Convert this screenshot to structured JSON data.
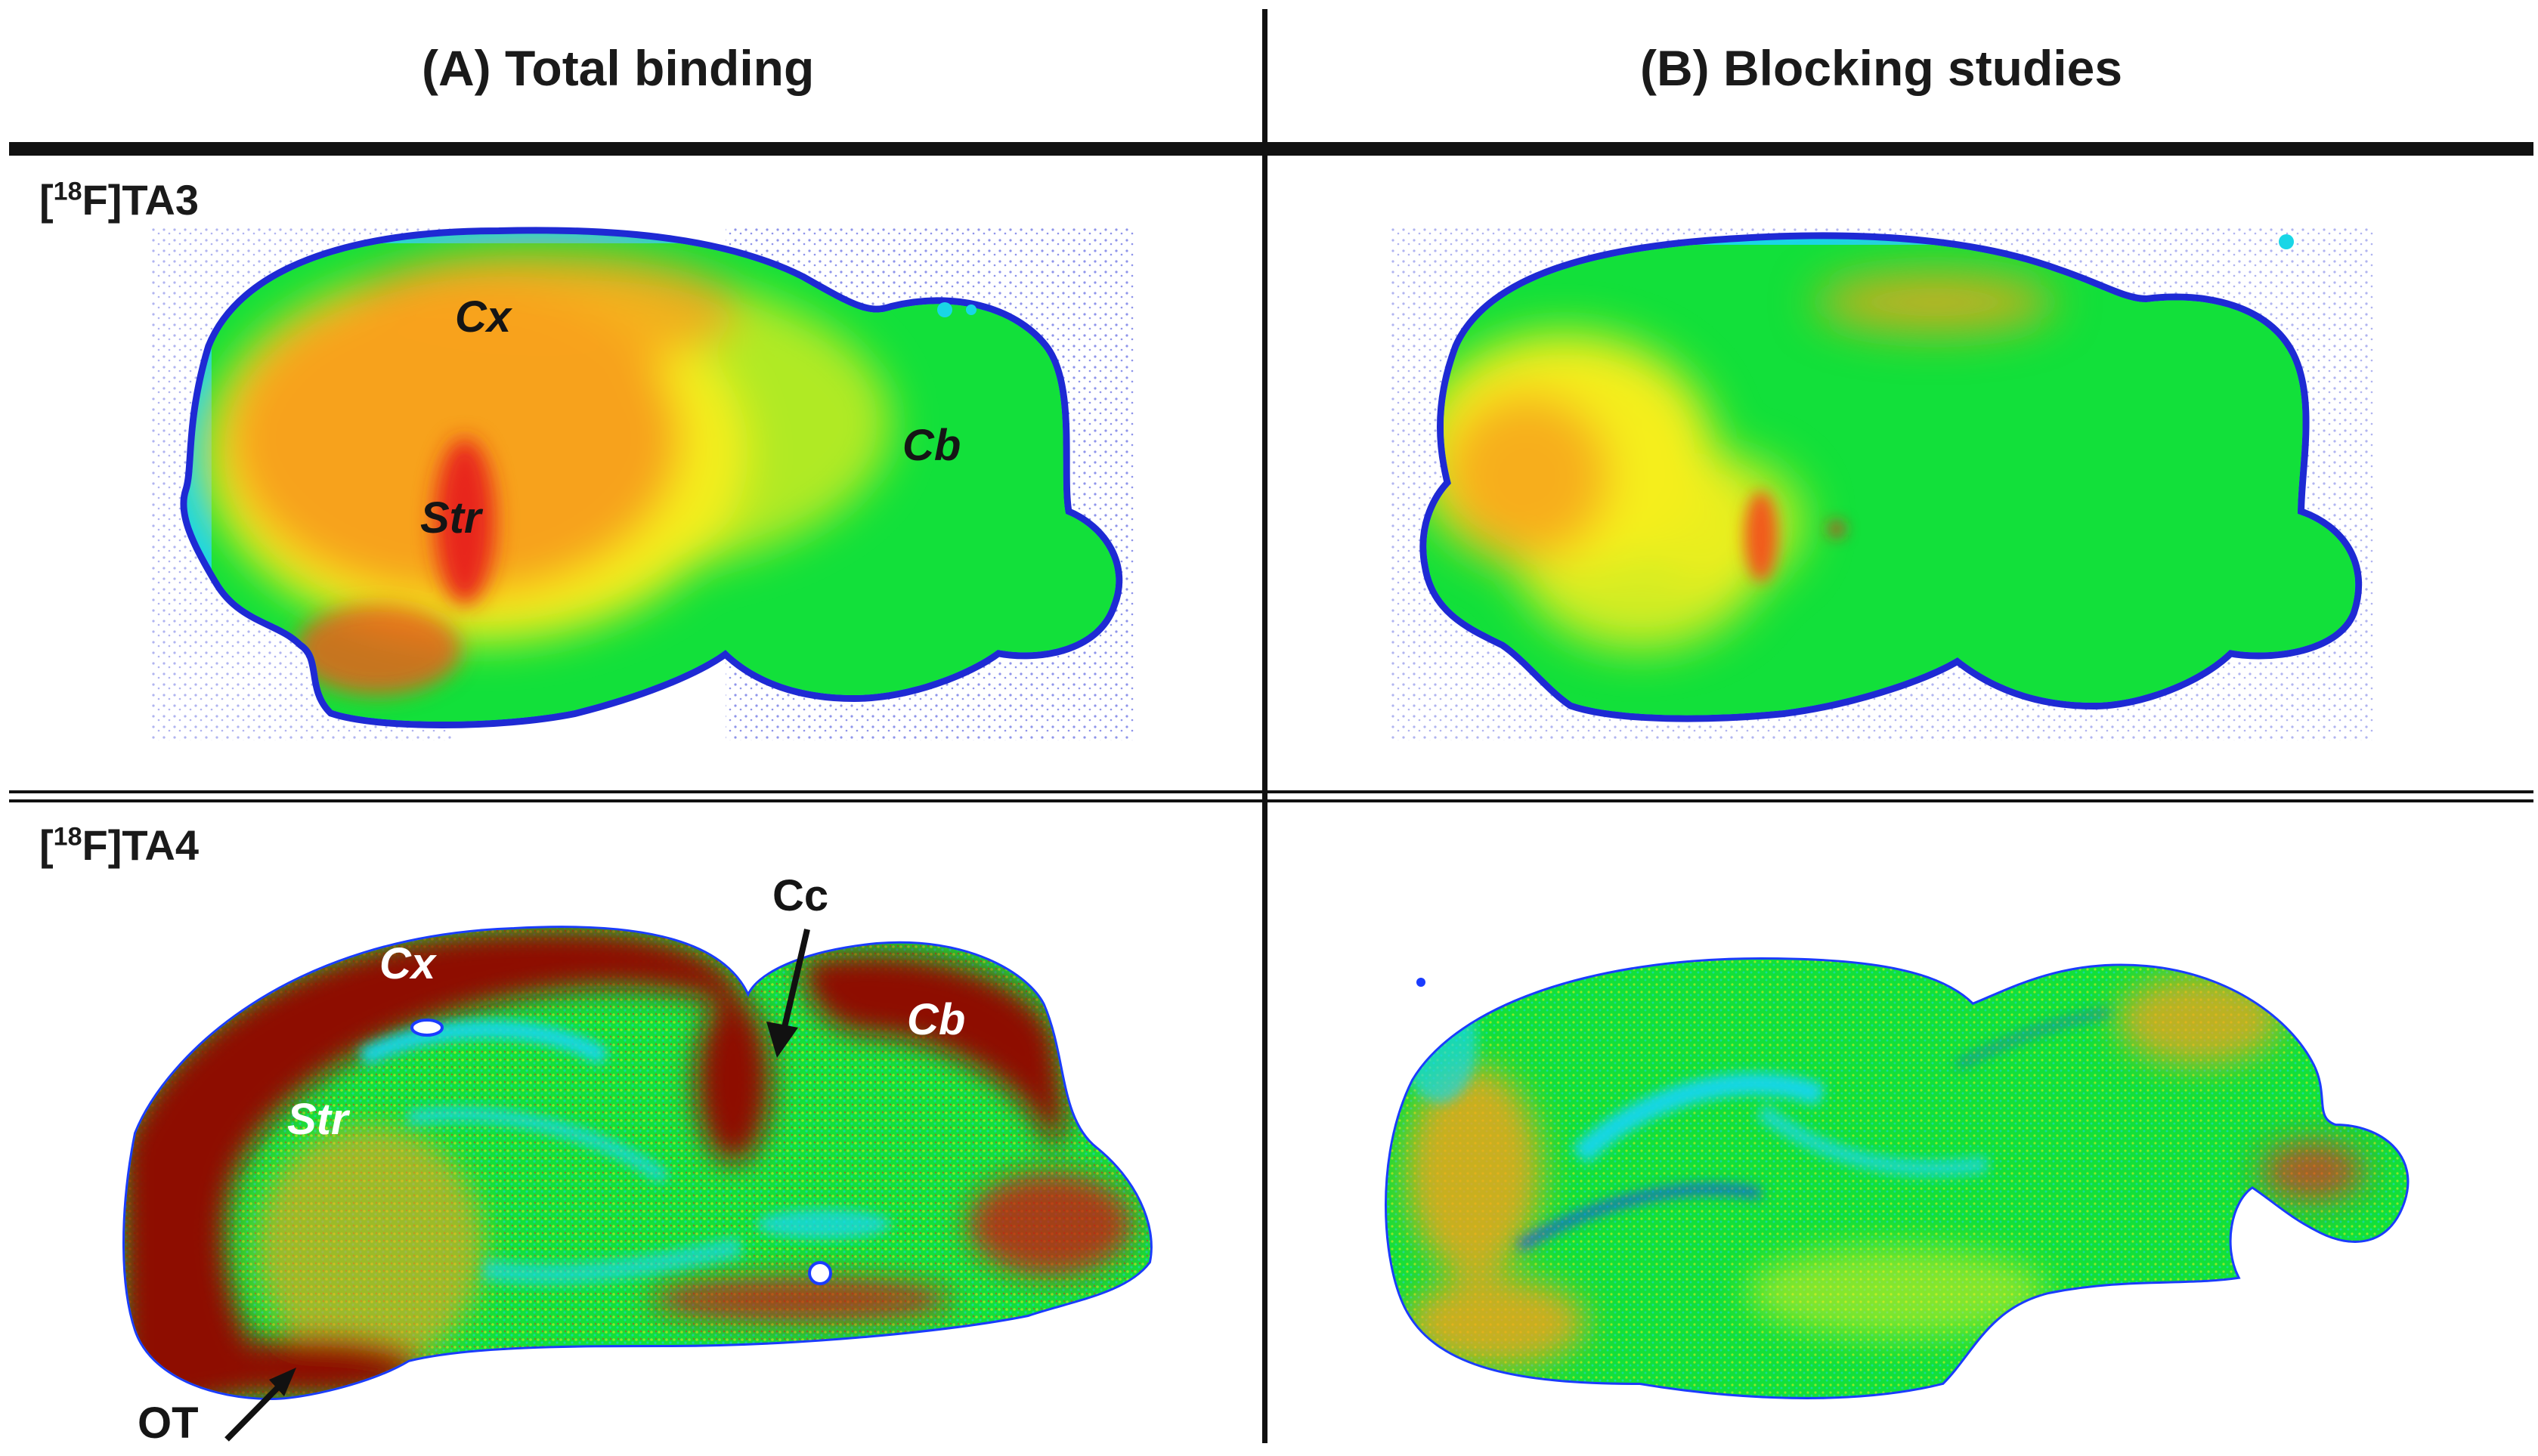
{
  "columns": {
    "a": "(A)  Total binding",
    "b": "(B)  Blocking studies"
  },
  "rows": {
    "ta3_prefix": "[",
    "ta3_sup": "18",
    "ta3_suffix": "F]TA3",
    "ta4_prefix": "[",
    "ta4_sup": "18",
    "ta4_suffix": "F]TA4"
  },
  "labels": {
    "ta3_total": {
      "cx": "Cx",
      "str": "Str",
      "cb": "Cb"
    },
    "ta4_total": {
      "cx": "Cx",
      "str": "Str",
      "cb": "Cb",
      "cc": "Cc",
      "ot": "OT"
    }
  },
  "colors": {
    "background_dot": "#1e2ad4",
    "edge_blue": "#1a3cff",
    "cyan": "#19d6e6",
    "green": "#12e03a",
    "yellow": "#f4ee1e",
    "orange": "#f7a21c",
    "red": "#e8251a",
    "dark_red": "#8e0d06"
  }
}
